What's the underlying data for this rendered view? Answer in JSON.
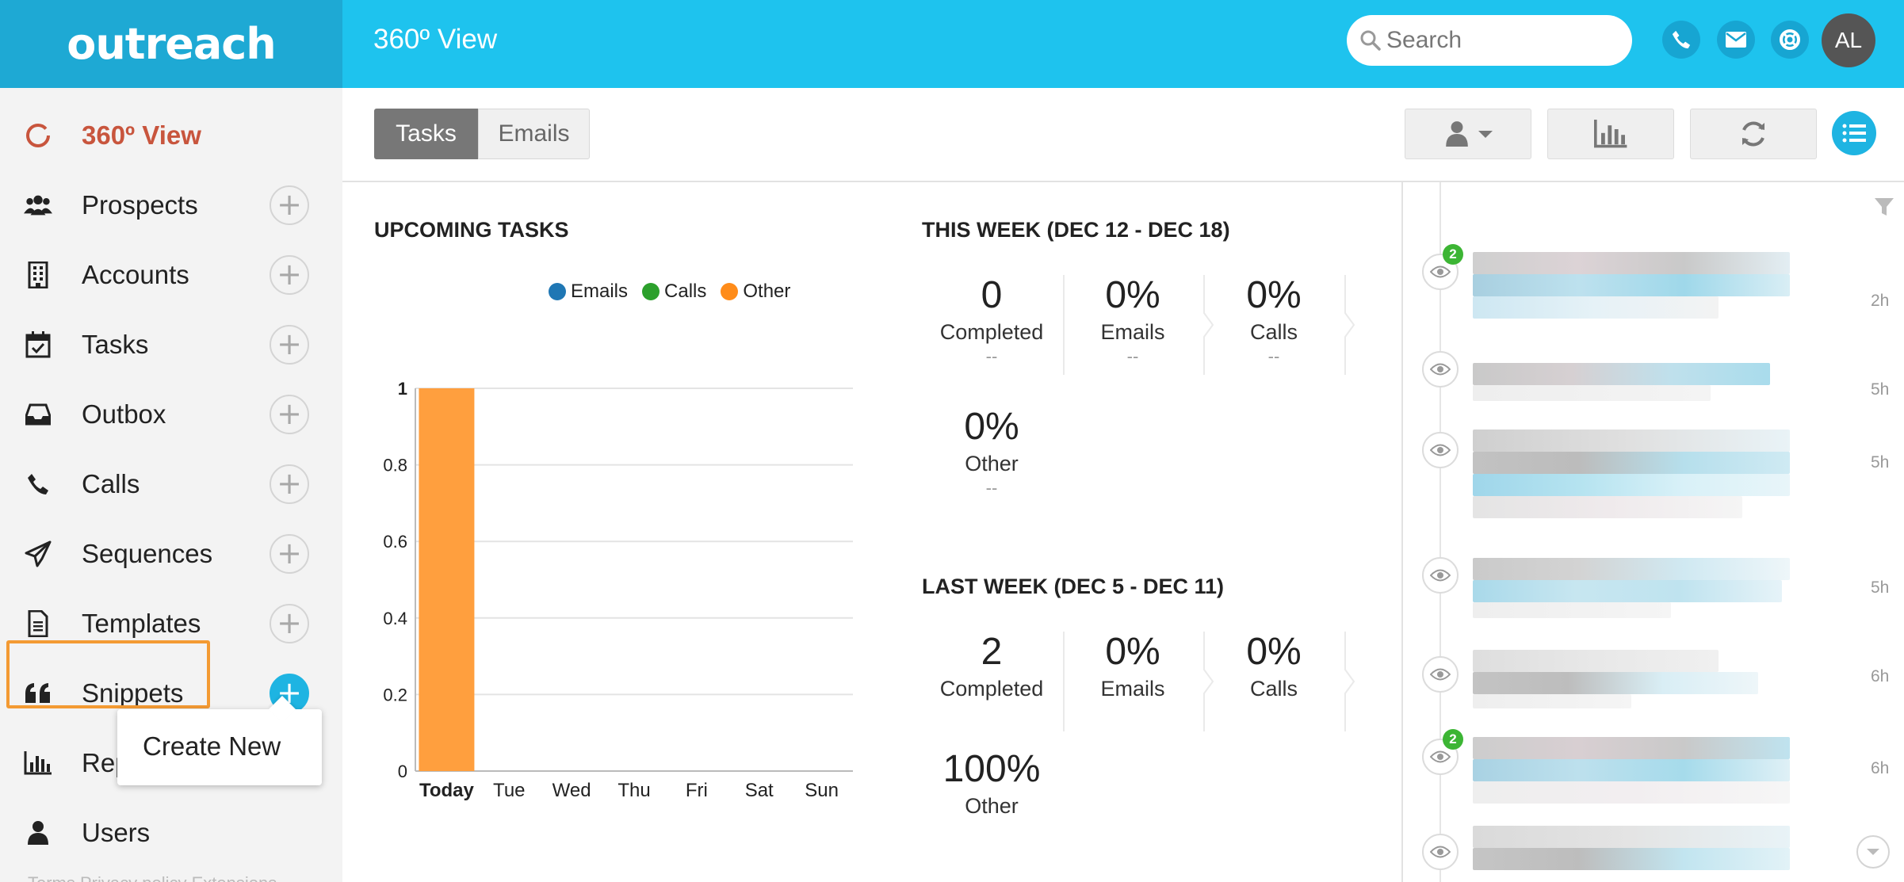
{
  "app": {
    "logo": "outreach",
    "page_title": "360º View"
  },
  "search": {
    "placeholder": "Search"
  },
  "user": {
    "initials": "AL"
  },
  "sidebar": {
    "items": [
      {
        "label": "360º View",
        "icon": "circle-ring-icon",
        "active": true,
        "has_add": false
      },
      {
        "label": "Prospects",
        "icon": "users-icon",
        "has_add": true
      },
      {
        "label": "Accounts",
        "icon": "building-icon",
        "has_add": true
      },
      {
        "label": "Tasks",
        "icon": "calendar-check-icon",
        "has_add": true
      },
      {
        "label": "Outbox",
        "icon": "inbox-icon",
        "has_add": true
      },
      {
        "label": "Calls",
        "icon": "phone-icon",
        "has_add": true
      },
      {
        "label": "Sequences",
        "icon": "paper-plane-icon",
        "has_add": true
      },
      {
        "label": "Templates",
        "icon": "file-text-icon",
        "has_add": true
      },
      {
        "label": "Snippets",
        "icon": "quote-icon",
        "has_add": true,
        "add_active": true,
        "highlighted": true
      },
      {
        "label": "Rep",
        "icon": "bar-chart-icon",
        "has_add": false
      },
      {
        "label": "Users",
        "icon": "user-icon",
        "has_add": false
      }
    ],
    "popup": {
      "label": "Create New"
    },
    "footer": "Terms    Privacy policy    Extensions"
  },
  "toolbar": {
    "tabs": [
      "Tasks",
      "Emails"
    ],
    "active_tab": "Tasks"
  },
  "upcoming": {
    "title": "UPCOMING TASKS",
    "legend": [
      {
        "name": "Emails",
        "color": "#1f77b4"
      },
      {
        "name": "Calls",
        "color": "#2ca02c"
      },
      {
        "name": "Other",
        "color": "#ff8c1a"
      }
    ]
  },
  "chart_data": {
    "type": "bar",
    "categories": [
      "Today",
      "Tue",
      "Wed",
      "Thu",
      "Fri",
      "Sat",
      "Sun"
    ],
    "series": [
      {
        "name": "Emails",
        "color": "#1f77b4",
        "values": [
          0,
          0,
          0,
          0,
          0,
          0,
          0
        ]
      },
      {
        "name": "Calls",
        "color": "#2ca02c",
        "values": [
          0,
          0,
          0,
          0,
          0,
          0,
          0
        ]
      },
      {
        "name": "Other",
        "color": "#ff9f3e",
        "values": [
          1,
          0,
          0,
          0,
          0,
          0,
          0
        ]
      }
    ],
    "ylim": [
      0,
      1
    ],
    "yticks": [
      "0",
      "0.2",
      "0.4",
      "0.6",
      "0.8",
      "1"
    ],
    "grid": true,
    "legend": "top-right"
  },
  "this_week": {
    "title": "THIS WEEK (DEC 12 - DEC 18)",
    "stats": [
      {
        "value": "0",
        "label": "Completed",
        "delta": "--"
      },
      {
        "value": "0%",
        "label": "Emails",
        "delta": "--"
      },
      {
        "value": "0%",
        "label": "Calls",
        "delta": "--"
      },
      {
        "value": "0%",
        "label": "Other",
        "delta": "--"
      }
    ]
  },
  "last_week": {
    "title": "LAST WEEK (DEC 5 - DEC 11)",
    "stats": [
      {
        "value": "2",
        "label": "Completed"
      },
      {
        "value": "0%",
        "label": "Emails"
      },
      {
        "value": "0%",
        "label": "Calls"
      },
      {
        "value": "100%",
        "label": "Other"
      }
    ]
  },
  "feed": {
    "items": [
      {
        "time": "2h",
        "badge": "2"
      },
      {
        "time": "5h"
      },
      {
        "time": "5h"
      },
      {
        "time": "5h"
      },
      {
        "time": "6h"
      },
      {
        "time": "6h",
        "badge": "2"
      },
      {
        "time": ""
      }
    ]
  }
}
